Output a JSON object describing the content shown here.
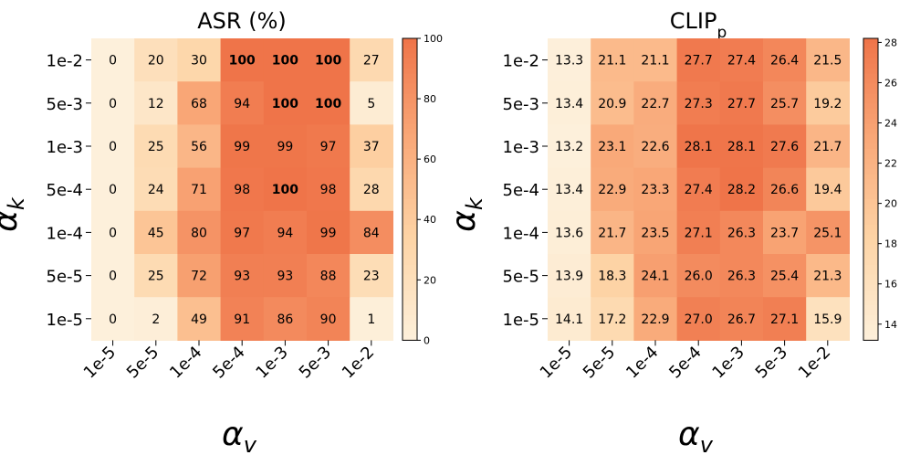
{
  "chart_data": [
    {
      "type": "heatmap",
      "title": "ASR (%)",
      "title_sub": "",
      "xlabel": "α",
      "xlabel_sub": "v",
      "ylabel": "α",
      "ylabel_sub": "k",
      "x_categories": [
        "1e-5",
        "5e-5",
        "1e-4",
        "5e-4",
        "1e-3",
        "5e-3",
        "1e-2"
      ],
      "y_categories": [
        "1e-2",
        "5e-3",
        "1e-3",
        "5e-4",
        "1e-4",
        "5e-5",
        "1e-5"
      ],
      "values": [
        [
          0,
          20,
          30,
          100,
          100,
          100,
          27
        ],
        [
          0,
          12,
          68,
          94,
          100,
          100,
          5
        ],
        [
          0,
          25,
          56,
          99,
          99,
          97,
          37
        ],
        [
          0,
          24,
          71,
          98,
          100,
          98,
          28
        ],
        [
          0,
          45,
          80,
          97,
          94,
          99,
          84
        ],
        [
          0,
          25,
          72,
          93,
          93,
          88,
          23
        ],
        [
          0,
          2,
          49,
          91,
          86,
          90,
          1
        ]
      ],
      "labels": [
        [
          "0",
          "20",
          "30",
          "100",
          "100",
          "100",
          "27"
        ],
        [
          "0",
          "12",
          "68",
          "94",
          "100",
          "100",
          "5"
        ],
        [
          "0",
          "25",
          "56",
          "99",
          "99",
          "97",
          "37"
        ],
        [
          "0",
          "24",
          "71",
          "98",
          "100",
          "98",
          "28"
        ],
        [
          "0",
          "45",
          "80",
          "97",
          "94",
          "99",
          "84"
        ],
        [
          "0",
          "25",
          "72",
          "93",
          "93",
          "88",
          "23"
        ],
        [
          "0",
          "2",
          "49",
          "91",
          "86",
          "90",
          "1"
        ]
      ],
      "bold": [
        [
          false,
          false,
          false,
          true,
          true,
          true,
          false
        ],
        [
          false,
          false,
          false,
          false,
          true,
          true,
          false
        ],
        [
          false,
          false,
          false,
          false,
          false,
          false,
          false
        ],
        [
          false,
          false,
          false,
          false,
          true,
          false,
          false
        ],
        [
          false,
          false,
          false,
          false,
          false,
          false,
          false
        ],
        [
          false,
          false,
          false,
          false,
          false,
          false,
          false
        ],
        [
          false,
          false,
          false,
          false,
          false,
          false,
          false
        ]
      ],
      "colorbar": {
        "min": 0,
        "max": 100,
        "ticks": [
          0,
          20,
          40,
          60,
          80,
          100
        ],
        "tick_labels": [
          "0",
          "20",
          "40",
          "60",
          "80",
          "100"
        ]
      },
      "colormap": [
        "#fdf0db",
        "#fdd4a6",
        "#f9a878",
        "#ef7449"
      ]
    },
    {
      "type": "heatmap",
      "title": "CLIP",
      "title_sub": "p",
      "xlabel": "α",
      "xlabel_sub": "v",
      "ylabel": "α",
      "ylabel_sub": "k",
      "x_categories": [
        "1e-5",
        "5e-5",
        "1e-4",
        "5e-4",
        "1e-3",
        "5e-3",
        "1e-2"
      ],
      "y_categories": [
        "1e-2",
        "5e-3",
        "1e-3",
        "5e-4",
        "1e-4",
        "5e-5",
        "1e-5"
      ],
      "values": [
        [
          13.3,
          21.1,
          21.1,
          27.7,
          27.4,
          26.4,
          21.5
        ],
        [
          13.4,
          20.9,
          22.7,
          27.3,
          27.7,
          25.7,
          19.2
        ],
        [
          13.2,
          23.1,
          22.6,
          28.1,
          28.1,
          27.6,
          21.7
        ],
        [
          13.4,
          22.9,
          23.3,
          27.4,
          28.2,
          26.6,
          19.4
        ],
        [
          13.6,
          21.7,
          23.5,
          27.1,
          26.3,
          23.7,
          25.1
        ],
        [
          13.9,
          18.3,
          24.1,
          26.0,
          26.3,
          25.4,
          21.3
        ],
        [
          14.1,
          17.2,
          22.9,
          27.0,
          26.7,
          27.1,
          15.9
        ]
      ],
      "labels": [
        [
          "13.3",
          "21.1",
          "21.1",
          "27.7",
          "27.4",
          "26.4",
          "21.5"
        ],
        [
          "13.4",
          "20.9",
          "22.7",
          "27.3",
          "27.7",
          "25.7",
          "19.2"
        ],
        [
          "13.2",
          "23.1",
          "22.6",
          "28.1",
          "28.1",
          "27.6",
          "21.7"
        ],
        [
          "13.4",
          "22.9",
          "23.3",
          "27.4",
          "28.2",
          "26.6",
          "19.4"
        ],
        [
          "13.6",
          "21.7",
          "23.5",
          "27.1",
          "26.3",
          "23.7",
          "25.1"
        ],
        [
          "13.9",
          "18.3",
          "24.1",
          "26.0",
          "26.3",
          "25.4",
          "21.3"
        ],
        [
          "14.1",
          "17.2",
          "22.9",
          "27.0",
          "26.7",
          "27.1",
          "15.9"
        ]
      ],
      "bold": [
        [
          false,
          false,
          false,
          false,
          false,
          false,
          false
        ],
        [
          false,
          false,
          false,
          false,
          false,
          false,
          false
        ],
        [
          false,
          false,
          false,
          false,
          false,
          false,
          false
        ],
        [
          false,
          false,
          false,
          false,
          false,
          false,
          false
        ],
        [
          false,
          false,
          false,
          false,
          false,
          false,
          false
        ],
        [
          false,
          false,
          false,
          false,
          false,
          false,
          false
        ],
        [
          false,
          false,
          false,
          false,
          false,
          false,
          false
        ]
      ],
      "colorbar": {
        "min": 13.2,
        "max": 28.2,
        "ticks": [
          14,
          16,
          18,
          20,
          22,
          24,
          26,
          28
        ],
        "tick_labels": [
          "14",
          "16",
          "18",
          "20",
          "22",
          "24",
          "26",
          "28"
        ]
      },
      "colormap": [
        "#fdf0db",
        "#fdd4a6",
        "#f9a878",
        "#ef7449"
      ]
    }
  ]
}
